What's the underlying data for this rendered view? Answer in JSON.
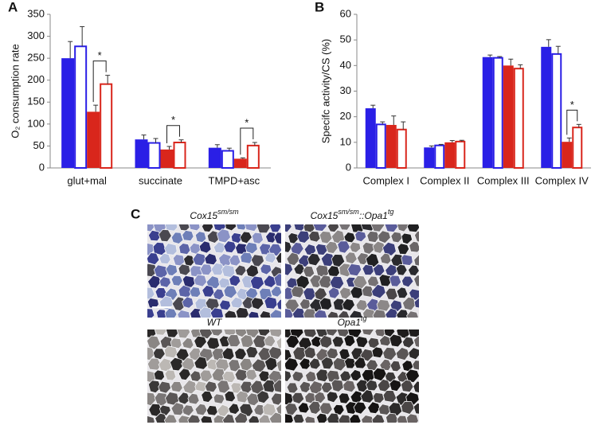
{
  "chart_data": [
    {
      "type": "bar",
      "panel": "A",
      "ylabel": "O₂ consumption rate",
      "categories": [
        "glut+mal",
        "succinate",
        "TMPD+asc"
      ],
      "series": [
        {
          "color": "#2a1fe6",
          "fill": "solid",
          "values": [
            250,
            65,
            46
          ],
          "errors": [
            38,
            10,
            7
          ]
        },
        {
          "color": "#2a1fe6",
          "fill": "open",
          "values": [
            277,
            57,
            39
          ],
          "errors": [
            45,
            10,
            6
          ]
        },
        {
          "color": "#d9261c",
          "fill": "solid",
          "values": [
            128,
            42,
            21
          ],
          "errors": [
            15,
            7,
            2
          ]
        },
        {
          "color": "#d9261c",
          "fill": "open",
          "values": [
            191,
            58,
            51
          ],
          "errors": [
            20,
            6,
            7
          ]
        }
      ],
      "significance": [
        "*",
        "*",
        "*"
      ],
      "ylim": [
        0,
        350
      ],
      "yticks": [
        0,
        50,
        100,
        150,
        200,
        250,
        300,
        350
      ]
    },
    {
      "type": "bar",
      "panel": "B",
      "ylabel": "Specifc activity/CS (%)",
      "categories": [
        "Complex I",
        "Complex II",
        "Complex III",
        "Complex IV"
      ],
      "series": [
        {
          "color": "#2a1fe6",
          "fill": "solid",
          "values": [
            23.3,
            8,
            43.3,
            47.3
          ],
          "errors": [
            1.2,
            0.6,
            0.8,
            2.8
          ]
        },
        {
          "color": "#2a1fe6",
          "fill": "open",
          "values": [
            17,
            8.8,
            43,
            44.5
          ],
          "errors": [
            1,
            0.4,
            0.5,
            3
          ]
        },
        {
          "color": "#d9261c",
          "fill": "solid",
          "values": [
            16.8,
            10,
            40,
            10.2
          ],
          "errors": [
            3.5,
            0.7,
            2.5,
            1.5
          ]
        },
        {
          "color": "#d9261c",
          "fill": "open",
          "values": [
            15,
            10.3,
            38.8,
            15.8
          ],
          "errors": [
            3,
            0.5,
            1.5,
            1.2
          ]
        }
      ],
      "significance": [
        null,
        null,
        null,
        "*"
      ],
      "ylim": [
        0,
        60
      ],
      "yticks": [
        0,
        10,
        20,
        30,
        40,
        50,
        60
      ]
    }
  ],
  "panel_c": {
    "label": "C",
    "images": [
      {
        "caption": [
          {
            "text": "Cox15"
          },
          {
            "text": "sm/sm",
            "sup": true
          }
        ],
        "stain": "blue"
      },
      {
        "caption": [
          {
            "text": "Cox15"
          },
          {
            "text": "sm/sm",
            "sup": true
          },
          {
            "text": "::Opa1"
          },
          {
            "text": "tg",
            "sup": true
          }
        ],
        "stain": "mixed"
      },
      {
        "caption": [
          {
            "text": "WT"
          }
        ],
        "stain": "gray"
      },
      {
        "caption": [
          {
            "text": "Opa1"
          },
          {
            "text": "tg",
            "sup": true
          }
        ],
        "stain": "dark"
      }
    ]
  }
}
